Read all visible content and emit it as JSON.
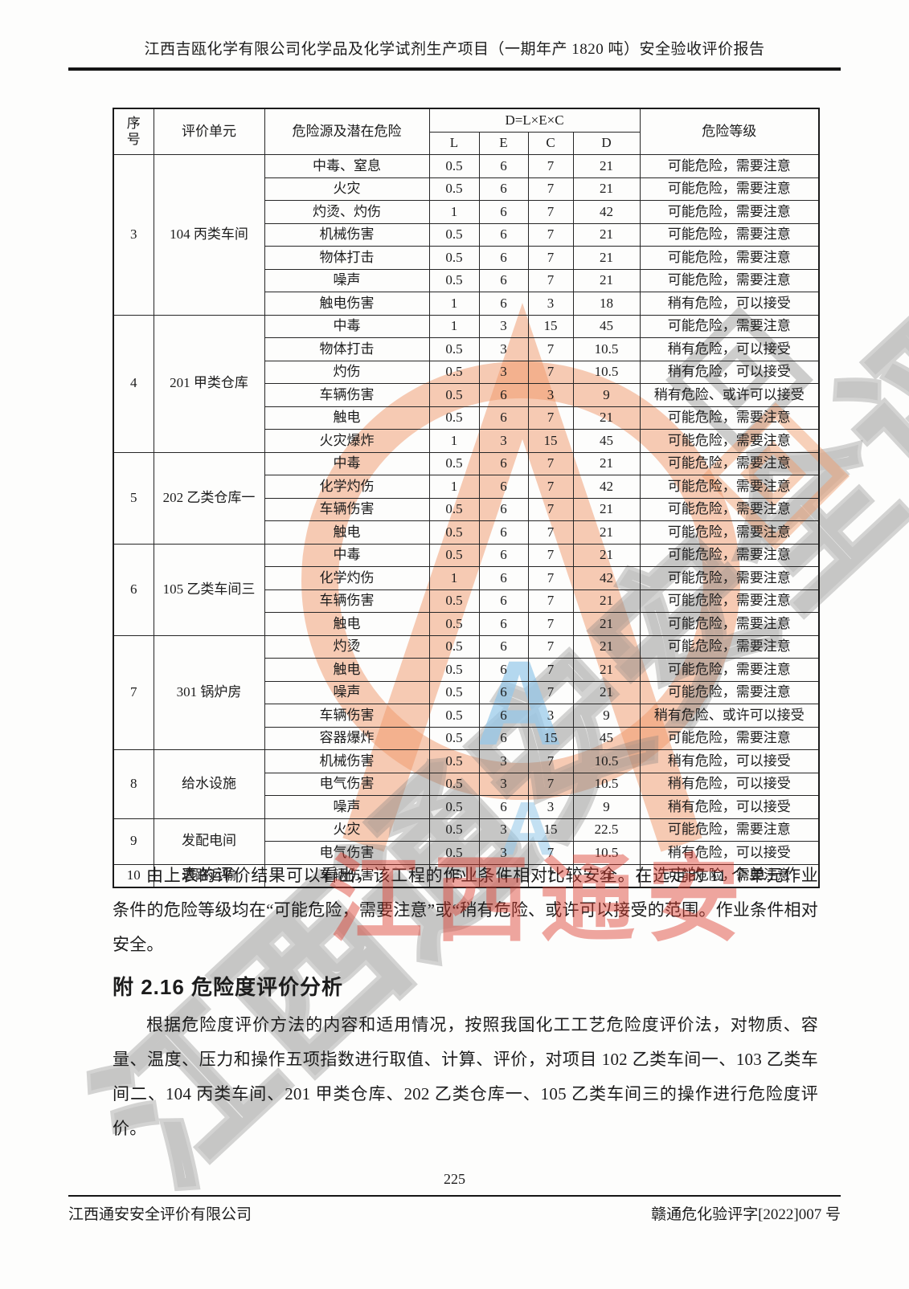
{
  "page": {
    "header_title": "江西吉瓯化学有限公司化学品及化学试剂生产项目（一期年产 1820 吨）安全验收评价报告",
    "page_number": "225",
    "footer_left": "江西通安安全评价有限公司",
    "footer_right": "赣通危化验评字[2022]007 号"
  },
  "table": {
    "headers": {
      "seq": "序\n号",
      "unit": "评价单元",
      "hazard": "危险源及潜在危险",
      "formula": "D=L×E×C",
      "l": "L",
      "e": "E",
      "c": "C",
      "d": "D",
      "level": "危险等级"
    },
    "groups": [
      {
        "seq": "3",
        "unit": "104 丙类车间",
        "rows": [
          {
            "hazard": "中毒、窒息",
            "l": "0.5",
            "e": "6",
            "c": "7",
            "d": "21",
            "level": "可能危险，需要注意"
          },
          {
            "hazard": "火灾",
            "l": "0.5",
            "e": "6",
            "c": "7",
            "d": "21",
            "level": "可能危险，需要注意"
          },
          {
            "hazard": "灼烫、灼伤",
            "l": "1",
            "e": "6",
            "c": "7",
            "d": "42",
            "level": "可能危险，需要注意"
          },
          {
            "hazard": "机械伤害",
            "l": "0.5",
            "e": "6",
            "c": "7",
            "d": "21",
            "level": "可能危险，需要注意"
          },
          {
            "hazard": "物体打击",
            "l": "0.5",
            "e": "6",
            "c": "7",
            "d": "21",
            "level": "可能危险，需要注意"
          },
          {
            "hazard": "噪声",
            "l": "0.5",
            "e": "6",
            "c": "7",
            "d": "21",
            "level": "可能危险，需要注意"
          },
          {
            "hazard": "触电伤害",
            "l": "1",
            "e": "6",
            "c": "3",
            "d": "18",
            "level": "稍有危险，可以接受"
          }
        ]
      },
      {
        "seq": "4",
        "unit": "201 甲类仓库",
        "rows": [
          {
            "hazard": "中毒",
            "l": "1",
            "e": "3",
            "c": "15",
            "d": "45",
            "level": "可能危险，需要注意"
          },
          {
            "hazard": "物体打击",
            "l": "0.5",
            "e": "3",
            "c": "7",
            "d": "10.5",
            "level": "稍有危险，可以接受"
          },
          {
            "hazard": "灼伤",
            "l": "0.5",
            "e": "3",
            "c": "7",
            "d": "10.5",
            "level": "稍有危险，可以接受"
          },
          {
            "hazard": "车辆伤害",
            "l": "0.5",
            "e": "6",
            "c": "3",
            "d": "9",
            "level": "稍有危险、或许可以接受"
          },
          {
            "hazard": "触电",
            "l": "0.5",
            "e": "6",
            "c": "7",
            "d": "21",
            "level": "可能危险，需要注意"
          },
          {
            "hazard": "火灾爆炸",
            "l": "1",
            "e": "3",
            "c": "15",
            "d": "45",
            "level": "可能危险，需要注意"
          }
        ]
      },
      {
        "seq": "5",
        "unit": "202 乙类仓库一",
        "rows": [
          {
            "hazard": "中毒",
            "l": "0.5",
            "e": "6",
            "c": "7",
            "d": "21",
            "level": "可能危险，需要注意"
          },
          {
            "hazard": "化学灼伤",
            "l": "1",
            "e": "6",
            "c": "7",
            "d": "42",
            "level": "可能危险，需要注意"
          },
          {
            "hazard": "车辆伤害",
            "l": "0.5",
            "e": "6",
            "c": "7",
            "d": "21",
            "level": "可能危险，需要注意"
          },
          {
            "hazard": "触电",
            "l": "0.5",
            "e": "6",
            "c": "7",
            "d": "21",
            "level": "可能危险，需要注意"
          }
        ]
      },
      {
        "seq": "6",
        "unit": "105 乙类车间三",
        "rows": [
          {
            "hazard": "中毒",
            "l": "0.5",
            "e": "6",
            "c": "7",
            "d": "21",
            "level": "可能危险，需要注意"
          },
          {
            "hazard": "化学灼伤",
            "l": "1",
            "e": "6",
            "c": "7",
            "d": "42",
            "level": "可能危险，需要注意"
          },
          {
            "hazard": "车辆伤害",
            "l": "0.5",
            "e": "6",
            "c": "7",
            "d": "21",
            "level": "可能危险，需要注意"
          },
          {
            "hazard": "触电",
            "l": "0.5",
            "e": "6",
            "c": "7",
            "d": "21",
            "level": "可能危险，需要注意"
          }
        ]
      },
      {
        "seq": "7",
        "unit": "301 锅炉房",
        "rows": [
          {
            "hazard": "灼烫",
            "l": "0.5",
            "e": "6",
            "c": "7",
            "d": "21",
            "level": "可能危险，需要注意"
          },
          {
            "hazard": "触电",
            "l": "0.5",
            "e": "6",
            "c": "7",
            "d": "21",
            "level": "可能危险，需要注意"
          },
          {
            "hazard": "噪声",
            "l": "0.5",
            "e": "6",
            "c": "7",
            "d": "21",
            "level": "可能危险，需要注意"
          },
          {
            "hazard": "车辆伤害",
            "l": "0.5",
            "e": "6",
            "c": "3",
            "d": "9",
            "level": "稍有危险、或许可以接受"
          },
          {
            "hazard": "容器爆炸",
            "l": "0.5",
            "e": "6",
            "c": "15",
            "d": "45",
            "level": "可能危险，需要注意"
          }
        ]
      },
      {
        "seq": "8",
        "unit": "给水设施",
        "rows": [
          {
            "hazard": "机械伤害",
            "l": "0.5",
            "e": "3",
            "c": "7",
            "d": "10.5",
            "level": "稍有危险，可以接受"
          },
          {
            "hazard": "电气伤害",
            "l": "0.5",
            "e": "3",
            "c": "7",
            "d": "10.5",
            "level": "稍有危险，可以接受"
          },
          {
            "hazard": "噪声",
            "l": "0.5",
            "e": "6",
            "c": "3",
            "d": "9",
            "level": "稍有危险，可以接受"
          }
        ]
      },
      {
        "seq": "9",
        "unit": "发配电间",
        "rows": [
          {
            "hazard": "火灾",
            "l": "0.5",
            "e": "3",
            "c": "15",
            "d": "22.5",
            "level": "可能危险，需要注意"
          },
          {
            "hazard": "电气伤害",
            "l": "0.5",
            "e": "3",
            "c": "7",
            "d": "10.5",
            "level": "稍有危险，可以接受"
          }
        ]
      },
      {
        "seq": "10",
        "unit": "道路运输",
        "rows": [
          {
            "hazard": "车辆伤害",
            "l": "0.5",
            "e": "6",
            "c": "7",
            "d": "21",
            "level": "可能危险，需要注意"
          }
        ]
      }
    ]
  },
  "body": {
    "paragraph1": "由上表的评价结果可以看出，该工程的作业条件相对比较安全。在选定的 11 个单元作业条件的危险等级均在“可能危险，需要注意”或“稍有危险、或许可以接受的范围。作业条件相对安全。",
    "section_heading": "附 2.16 危险度评价分析",
    "paragraph2": "根据危险度评价方法的内容和适用情况，按照我国化工工艺危险度评价法，对物质、容量、温度、压力和操作五项指数进行取值、计算、评价，对项目 102 乙类车间一、103 乙类车间二、104 丙类车间、201 甲类仓库、202 乙类仓库一、105 乙类车间三的操作进行危险度评价。"
  },
  "watermark": {
    "gray_text": "江西通安安全评价有限公司",
    "red_text": "江西通安",
    "blue_text_large": "A",
    "blue_text_small": "A",
    "ring_color": "rgba(240,152,105,0.5)",
    "red_color": "#db392d",
    "gray_color": "#858585",
    "blue_color": "#94c8e9"
  }
}
